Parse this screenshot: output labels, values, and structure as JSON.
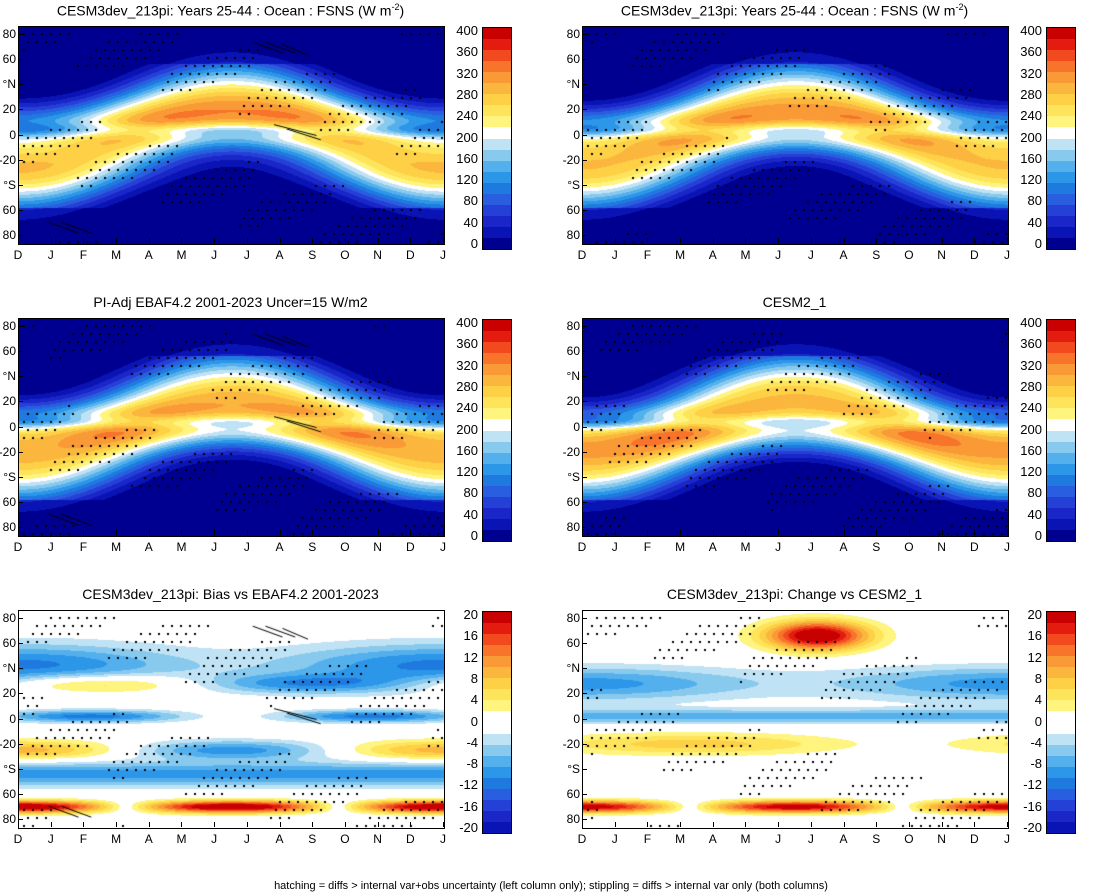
{
  "footer": "hatching = diffs > internal var+obs uncertainty (left column only); stippling = diffs > internal var only (both columns)",
  "x_months": [
    "D",
    "J",
    "F",
    "M",
    "A",
    "M",
    "J",
    "J",
    "A",
    "S",
    "O",
    "N",
    "D",
    "J"
  ],
  "y_labels": [
    "80",
    "60",
    "°N",
    "20",
    "0",
    "-20",
    "°S",
    "60",
    "80"
  ],
  "colorbars": {
    "abs": {
      "labels": [
        "400",
        "360",
        "320",
        "280",
        "240",
        "200",
        "160",
        "120",
        "80",
        "40",
        "0"
      ],
      "colors": [
        "#c80000",
        "#e41c10",
        "#f24a1e",
        "#f7742a",
        "#f99a36",
        "#fbb63e",
        "#fdd046",
        "#fde45a",
        "#fef47e",
        "#ffffff",
        "#bfe2f4",
        "#88c9ee",
        "#54b0ec",
        "#2c96e8",
        "#1f7ae0",
        "#2a5ee0",
        "#2540d6",
        "#1a26c8",
        "#0a14b4",
        "#000090"
      ]
    },
    "diff": {
      "labels": [
        "20",
        "16",
        "12",
        "8",
        "4",
        "0",
        "-4",
        "-8",
        "-12",
        "-16",
        "-20"
      ],
      "colors": [
        "#c80000",
        "#e41c10",
        "#f24a1e",
        "#f7742a",
        "#f99a36",
        "#fbb63e",
        "#fdd046",
        "#fde45a",
        "#fef47e",
        "#ffffff",
        "#ffffff",
        "#bfe2f4",
        "#88c9ee",
        "#54b0ec",
        "#2c96e8",
        "#1f7ae0",
        "#2a5ee0",
        "#2540d6",
        "#1a26c8",
        "#0a14b4"
      ]
    }
  },
  "panels": [
    {
      "id": "p1",
      "title": "CESM3dev_213pi: Years 25-44 : Ocean : FSNS (W m",
      "title_sup": "-2",
      "title_end": ")",
      "kind": "abs",
      "hatch": true
    },
    {
      "id": "p2",
      "title": "CESM3dev_213pi: Years 25-44 : Ocean : FSNS (W m",
      "title_sup": "-2",
      "title_end": ")",
      "kind": "abs",
      "hatch": false
    },
    {
      "id": "p3",
      "title": "PI-Adj EBAF4.2 2001-2023 Uncer=15 W/m2",
      "title_sup": "",
      "title_end": "",
      "kind": "abs",
      "hatch": true
    },
    {
      "id": "p4",
      "title": "CESM2_1",
      "title_sup": "",
      "title_end": "",
      "kind": "abs",
      "hatch": false
    },
    {
      "id": "p5",
      "title": "CESM3dev_213pi: Bias vs EBAF4.2 2001-2023",
      "title_sup": "",
      "title_end": "",
      "kind": "diff",
      "hatch": true
    },
    {
      "id": "p6",
      "title": "CESM3dev_213pi: Change vs CESM2_1",
      "title_sup": "",
      "title_end": "",
      "kind": "diff",
      "hatch": false
    }
  ],
  "chart_data": [
    {
      "type": "heatmap",
      "title": "CESM3dev_213pi: Years 25-44 : Ocean : FSNS (W m-2)",
      "x": [
        "D",
        "J",
        "F",
        "M",
        "A",
        "M",
        "J",
        "J",
        "A",
        "S",
        "O",
        "N",
        "D",
        "J"
      ],
      "y_ticks": [
        "80",
        "60",
        "°N",
        "20",
        "0",
        "-20",
        "°S",
        "60",
        "80"
      ],
      "colorbar": [
        0,
        40,
        80,
        120,
        160,
        200,
        240,
        280,
        320,
        360,
        400
      ]
    },
    {
      "type": "heatmap",
      "title": "CESM3dev_213pi: Years 25-44 : Ocean : FSNS (W m-2)",
      "x": [
        "D",
        "J",
        "F",
        "M",
        "A",
        "M",
        "J",
        "J",
        "A",
        "S",
        "O",
        "N",
        "D",
        "J"
      ],
      "y_ticks": [
        "80",
        "60",
        "°N",
        "20",
        "0",
        "-20",
        "°S",
        "60",
        "80"
      ],
      "colorbar": [
        0,
        40,
        80,
        120,
        160,
        200,
        240,
        280,
        320,
        360,
        400
      ]
    },
    {
      "type": "heatmap",
      "title": "PI-Adj EBAF4.2 2001-2023 Uncer=15 W/m2",
      "x": [
        "D",
        "J",
        "F",
        "M",
        "A",
        "M",
        "J",
        "J",
        "A",
        "S",
        "O",
        "N",
        "D",
        "J"
      ],
      "y_ticks": [
        "80",
        "60",
        "°N",
        "20",
        "0",
        "-20",
        "°S",
        "60",
        "80"
      ],
      "colorbar": [
        0,
        40,
        80,
        120,
        160,
        200,
        240,
        280,
        320,
        360,
        400
      ]
    },
    {
      "type": "heatmap",
      "title": "CESM2_1",
      "x": [
        "D",
        "J",
        "F",
        "M",
        "A",
        "M",
        "J",
        "J",
        "A",
        "S",
        "O",
        "N",
        "D",
        "J"
      ],
      "y_ticks": [
        "80",
        "60",
        "°N",
        "20",
        "0",
        "-20",
        "°S",
        "60",
        "80"
      ],
      "colorbar": [
        0,
        40,
        80,
        120,
        160,
        200,
        240,
        280,
        320,
        360,
        400
      ]
    },
    {
      "type": "heatmap",
      "title": "CESM3dev_213pi: Bias vs EBAF4.2 2001-2023",
      "x": [
        "D",
        "J",
        "F",
        "M",
        "A",
        "M",
        "J",
        "J",
        "A",
        "S",
        "O",
        "N",
        "D",
        "J"
      ],
      "y_ticks": [
        "80",
        "60",
        "°N",
        "20",
        "0",
        "-20",
        "°S",
        "60",
        "80"
      ],
      "colorbar": [
        -20,
        -16,
        -12,
        -8,
        -4,
        0,
        4,
        8,
        12,
        16,
        20
      ]
    },
    {
      "type": "heatmap",
      "title": "CESM3dev_213pi: Change vs CESM2_1",
      "x": [
        "D",
        "J",
        "F",
        "M",
        "A",
        "M",
        "J",
        "J",
        "A",
        "S",
        "O",
        "N",
        "D",
        "J"
      ],
      "y_ticks": [
        "80",
        "60",
        "°N",
        "20",
        "0",
        "-20",
        "°S",
        "60",
        "80"
      ],
      "colorbar": [
        -20,
        -16,
        -12,
        -8,
        -4,
        0,
        4,
        8,
        12,
        16,
        20
      ]
    }
  ]
}
